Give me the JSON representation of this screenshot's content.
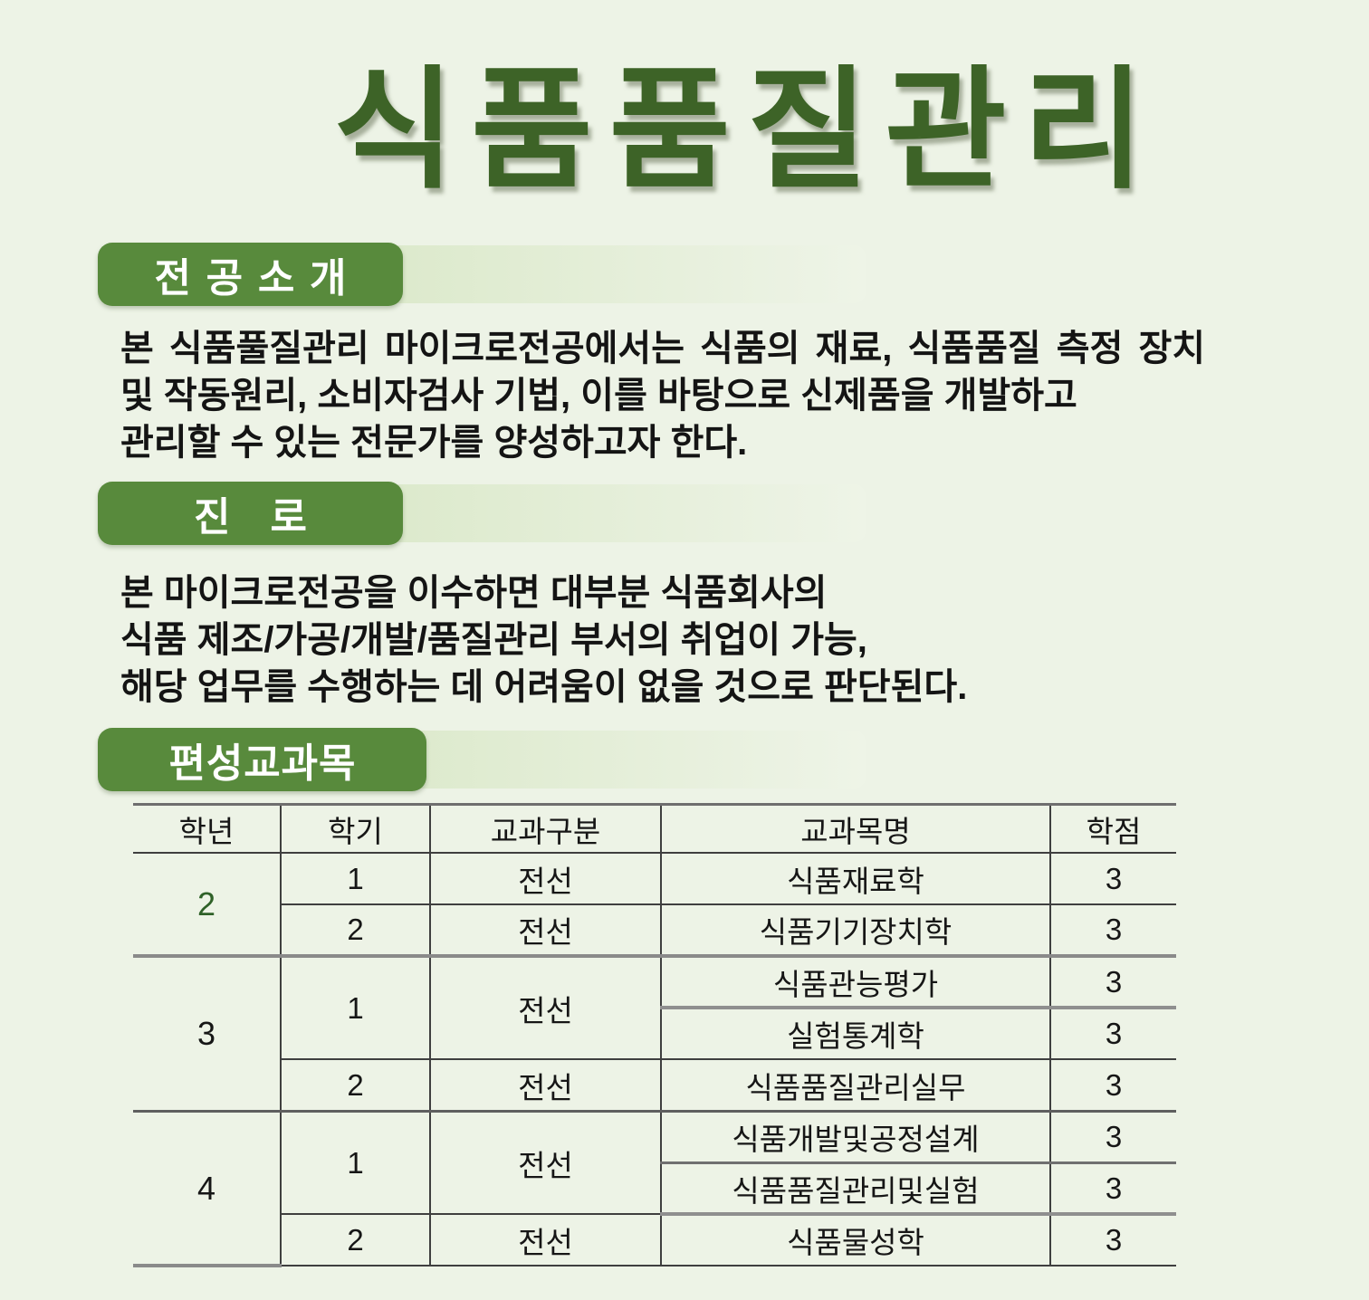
{
  "page": {
    "title": "식품품질관리"
  },
  "colors": {
    "background": "#edf3e6",
    "title_green": "#3d6327",
    "pill_green": "#588a3c",
    "year2_green": "#2f6128",
    "border_dark": "#3f3f3f",
    "border_gray": "#8a8a8a"
  },
  "sections": {
    "intro": {
      "heading": "전공소개",
      "lines": [
        "본 식품풀질관리 마이크로전공에서는 식품의 재료, 식품품질 측정 장치",
        "및 작동원리, 소비자검사 기법, 이를 바탕으로 신제품을 개발하고",
        "관리할 수 있는 전문가를 양성하고자 한다."
      ]
    },
    "career": {
      "heading": "진로",
      "lines": [
        "본 마이크로전공을 이수하면 대부분 식품회사의",
        "식품 제조/가공/개발/품질관리 부서의 취업이 가능,",
        "해당 업무를 수행하는 데 어려움이 없을 것으로 판단된다."
      ]
    },
    "courses": {
      "heading": "편성교과목"
    }
  },
  "table": {
    "headers": [
      "학년",
      "학기",
      "교과구분",
      "교과목명",
      "학점"
    ],
    "rows": [
      [
        "2",
        "1",
        "전선",
        "식품재료학",
        "3"
      ],
      [
        "2",
        "전선",
        "식품기기장치학",
        "3"
      ],
      [
        "3",
        "1",
        "전선",
        "식품관능평가",
        "3"
      ],
      [
        "실험통계학",
        "3"
      ],
      [
        "2",
        "전선",
        "식품품질관리실무",
        "3"
      ],
      [
        "4",
        "1",
        "전선",
        "식품개발및공정설계",
        "3"
      ],
      [
        "식품품질관리및실험",
        "3"
      ],
      [
        "2",
        "전선",
        "식품물성학",
        "3"
      ]
    ]
  }
}
